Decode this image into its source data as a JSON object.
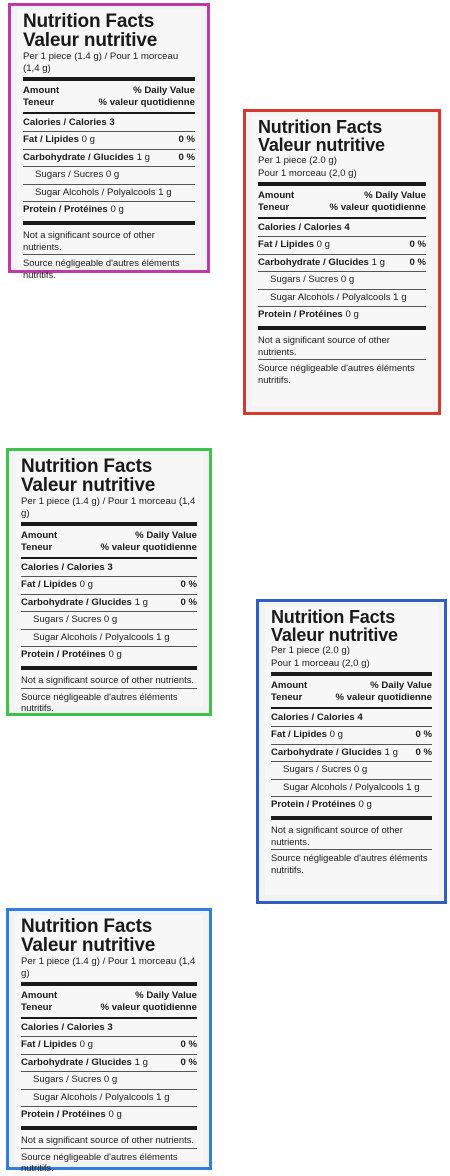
{
  "panels": [
    {
      "color": "#c03aa6",
      "title_en": "Nutrition Facts",
      "title_fr": "Valeur nutritive",
      "serving_1": "Per 1 piece (1.4 g) / Pour 1 morceau (1,4 g)",
      "serving_2": "",
      "amount": "Amount",
      "teneur": "Teneur",
      "dv": "% Daily Value",
      "vq": "% valeur quotidienne",
      "calories": "Calories / Calories 3",
      "fat": "Fat / Lipides",
      "fat_val": "0 g",
      "fat_pct": "0 %",
      "carb": "Carbohydrate / Glucides",
      "carb_val": "1 g",
      "carb_pct": "0 %",
      "sugars": "Sugars / Sucres 0 g",
      "sugar_alcohols": "Sugar Alcohols / Polyalcools 1 g",
      "protein": "Protein / Protéines",
      "protein_val": "0 g",
      "note_en": "Not a significant source of other nutrients.",
      "note_fr": "Source négligeable d'autres éléments nutritifs."
    },
    {
      "color": "#d63a2f",
      "title_en": "Nutrition Facts",
      "title_fr": "Valeur nutritive",
      "serving_1": "Per 1 piece (2.0 g)",
      "serving_2": "Pour 1 morceau (2,0 g)",
      "amount": "Amount",
      "teneur": "Teneur",
      "dv": "% Daily Value",
      "vq": "% valeur quotidienne",
      "calories": "Calories / Calories 4",
      "fat": "Fat / Lipides",
      "fat_val": "0 g",
      "fat_pct": "0 %",
      "carb": "Carbohydrate / Glucides",
      "carb_val": "1 g",
      "carb_pct": "0 %",
      "sugars": "Sugars / Sucres 0 g",
      "sugar_alcohols": "Sugar Alcohols / Polyalcools 1 g",
      "protein": "Protein / Protéines",
      "protein_val": "0 g",
      "note_en": "Not a significant source of other nutrients.",
      "note_fr": "Source négligeable d'autres éléments nutritifs."
    },
    {
      "color": "#3fc24a",
      "title_en": "Nutrition Facts",
      "title_fr": "Valeur nutritive",
      "serving_1": "Per 1 piece (1.4 g) / Pour 1 morceau (1,4 g)",
      "serving_2": "",
      "amount": "Amount",
      "teneur": "Teneur",
      "dv": "% Daily Value",
      "vq": "% valeur quotidienne",
      "calories": "Calories / Calories 3",
      "fat": "Fat / Lipides",
      "fat_val": "0 g",
      "fat_pct": "0 %",
      "carb": "Carbohydrate / Glucides",
      "carb_val": "1 g",
      "carb_pct": "0 %",
      "sugars": "Sugars / Sucres 0 g",
      "sugar_alcohols": "Sugar Alcohols / Polyalcools 1 g",
      "protein": "Protein / Protéines",
      "protein_val": "0 g",
      "note_en": "Not a significant source of other nutrients.",
      "note_fr": "Source négligeable d'autres éléments nutritifs."
    },
    {
      "color": "#2f5fbf",
      "title_en": "Nutrition Facts",
      "title_fr": "Valeur nutritive",
      "serving_1": "Per 1 piece (2.0 g)",
      "serving_2": "Pour 1 morceau (2,0 g)",
      "amount": "Amount",
      "teneur": "Teneur",
      "dv": "% Daily Value",
      "vq": "% valeur quotidienne",
      "calories": "Calories / Calories 4",
      "fat": "Fat / Lipides",
      "fat_val": "0 g",
      "fat_pct": "0 %",
      "carb": "Carbohydrate / Glucides",
      "carb_val": "1 g",
      "carb_pct": "0 %",
      "sugars": "Sugars / Sucres 0 g",
      "sugar_alcohols": "Sugar Alcohols / Polyalcools 1 g",
      "protein": "Protein / Protéines",
      "protein_val": "0 g",
      "note_en": "Not a significant source of other nutrients.",
      "note_fr": "Source négligeable d'autres éléments nutritifs."
    },
    {
      "color": "#2f7fe0",
      "title_en": "Nutrition Facts",
      "title_fr": "Valeur nutritive",
      "serving_1": "Per 1 piece (1.4 g) / Pour 1 morceau (1,4 g)",
      "serving_2": "",
      "amount": "Amount",
      "teneur": "Teneur",
      "dv": "% Daily Value",
      "vq": "% valeur quotidienne",
      "calories": "Calories / Calories 3",
      "fat": "Fat / Lipides",
      "fat_val": "0 g",
      "fat_pct": "0 %",
      "carb": "Carbohydrate / Glucides",
      "carb_val": "1 g",
      "carb_pct": "0 %",
      "sugars": "Sugars / Sucres 0 g",
      "sugar_alcohols": "Sugar Alcohols / Polyalcools 1 g",
      "protein": "Protein / Protéines",
      "protein_val": "0 g",
      "note_en": "Not a significant source of other nutrients.",
      "note_fr": "Source négligeable d'autres éléments nutritifs."
    }
  ]
}
